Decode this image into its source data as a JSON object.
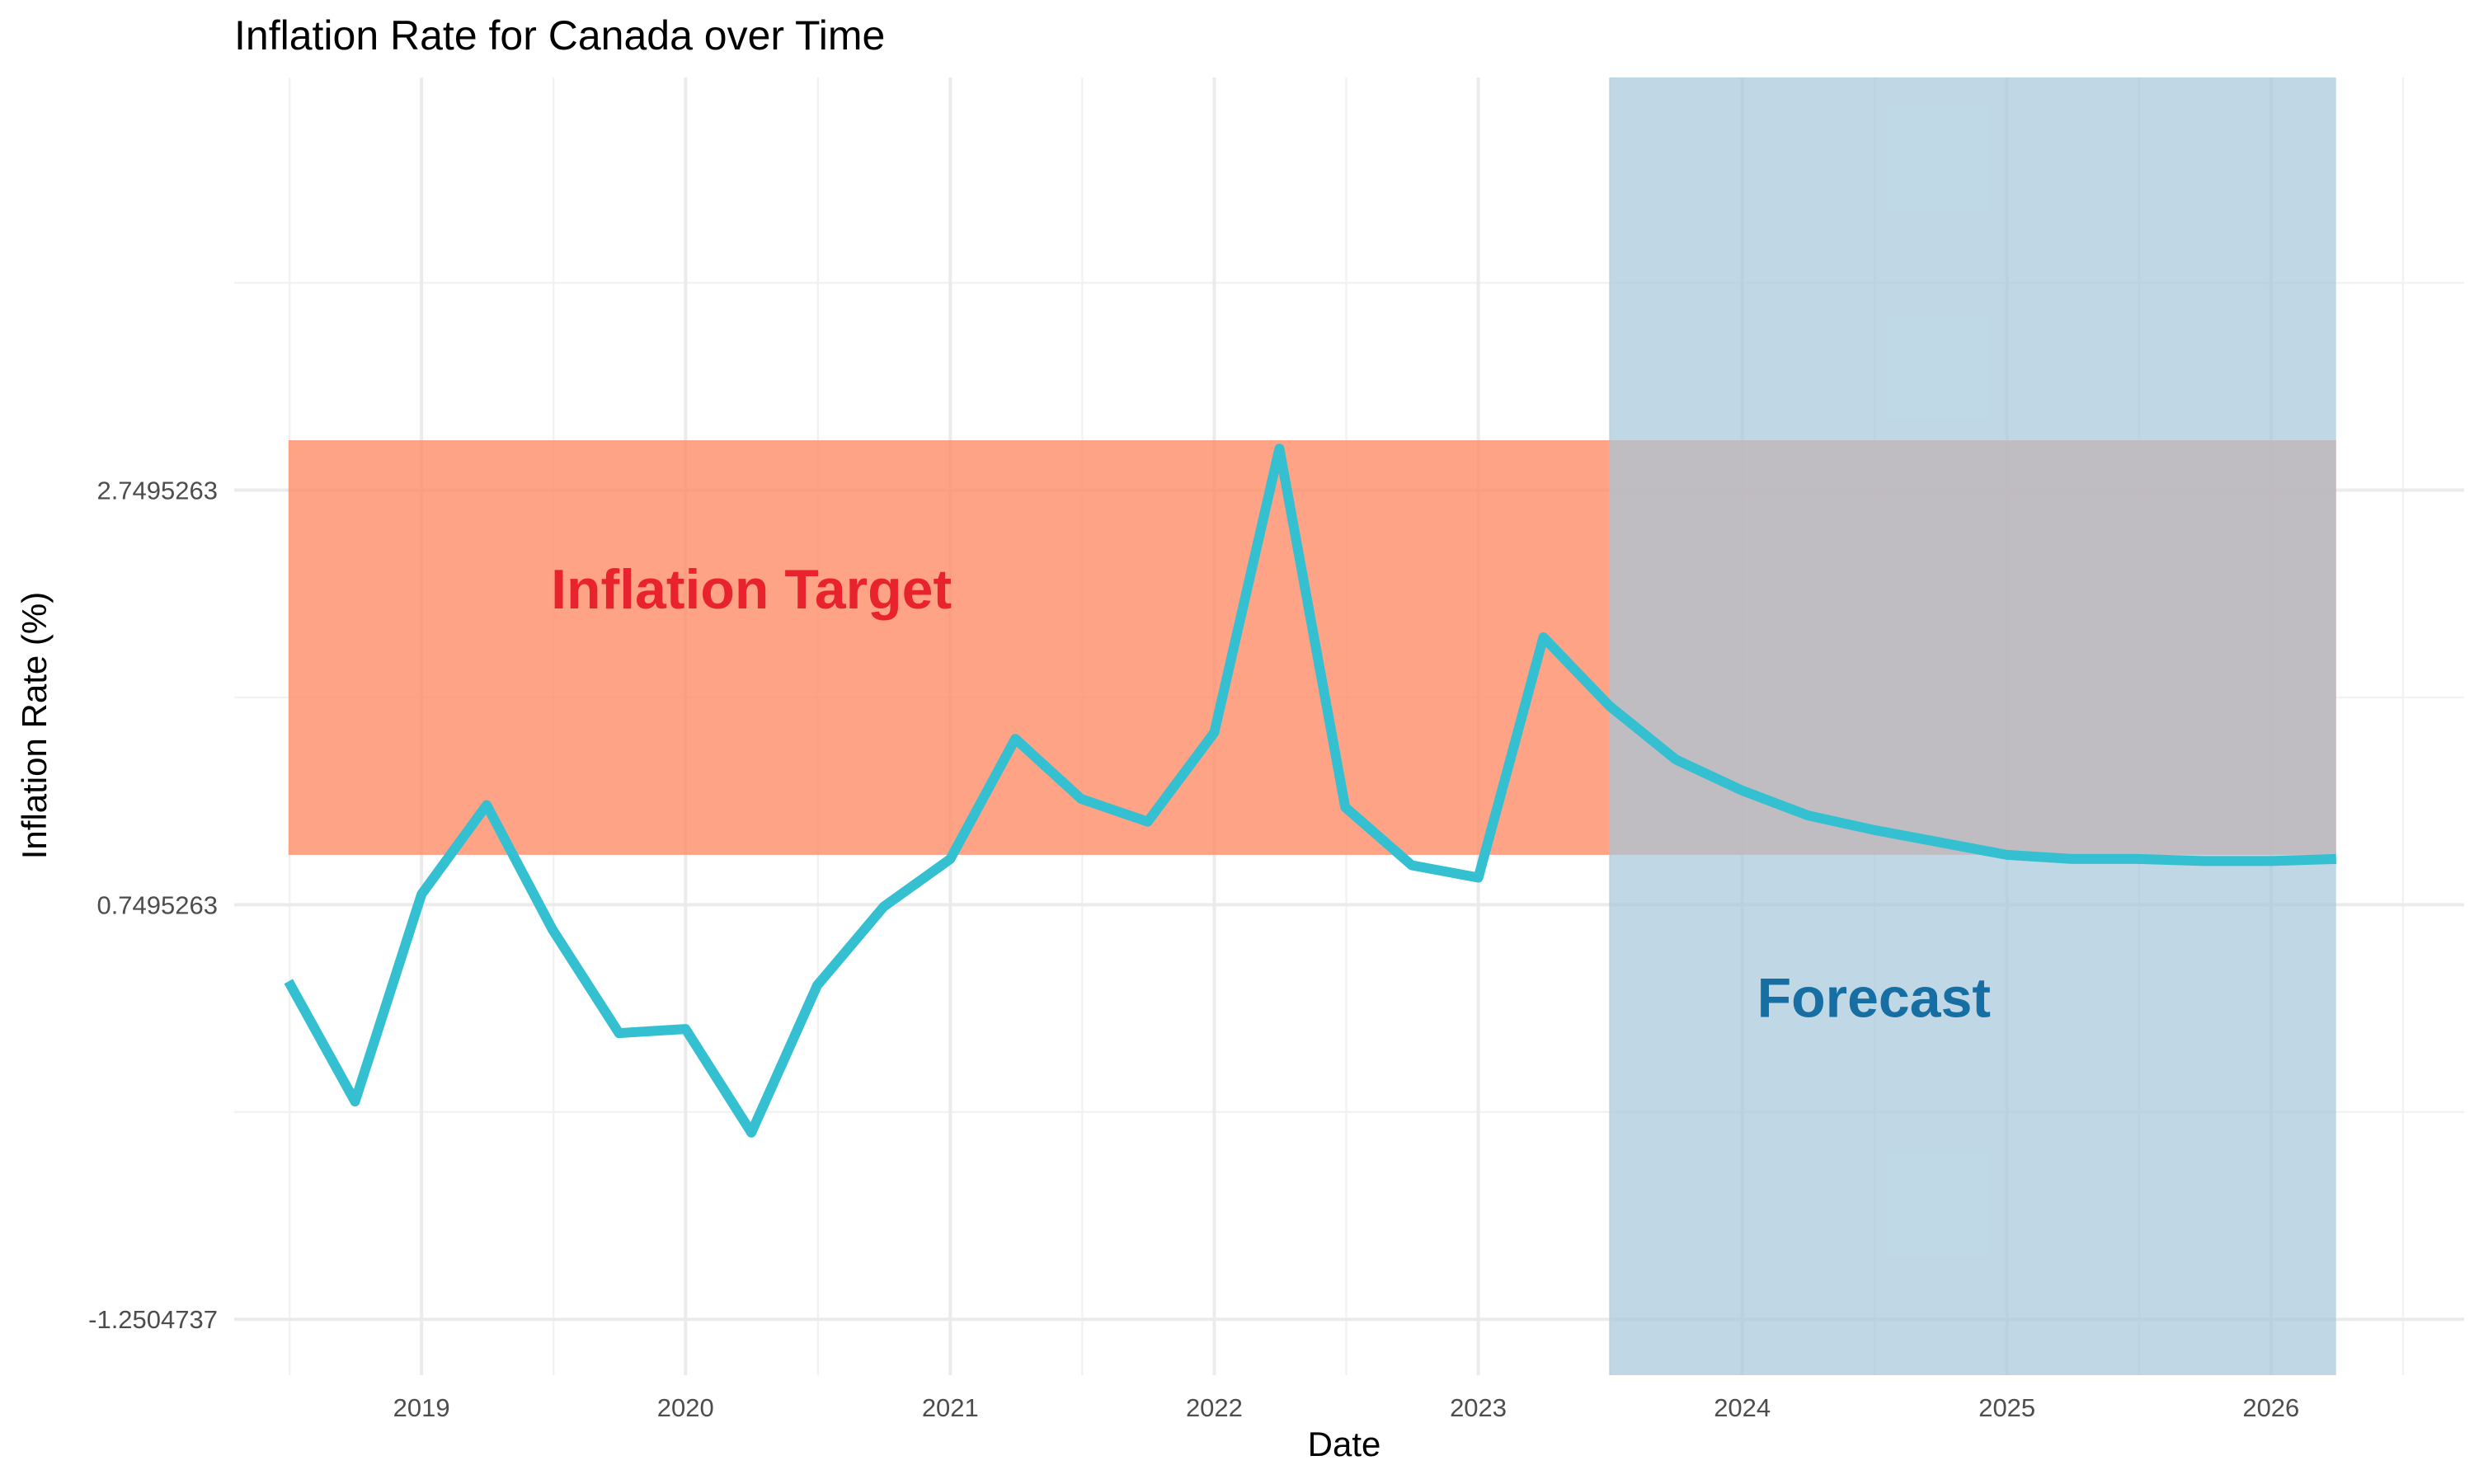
{
  "chart_data": {
    "type": "line",
    "title": "Inflation Rate for Canada over Time",
    "xlabel": "Date",
    "ylabel": "Inflation Rate (%)",
    "xlim": [
      "2018-04-17",
      "2026-09-25"
    ],
    "ylim": [
      -1.52,
      4.74
    ],
    "x_ticks": [
      "2019-01-01",
      "2020-01-01",
      "2021-01-01",
      "2022-01-01",
      "2023-01-01",
      "2024-01-01",
      "2025-01-01",
      "2026-01-01"
    ],
    "x_tick_labels": [
      "2019",
      "2020",
      "2021",
      "2022",
      "2023",
      "2024",
      "2025",
      "2026"
    ],
    "y_ticks": [
      -1.2504737,
      0.7495263,
      2.7495263
    ],
    "y_tick_labels": [
      "-1.2504737",
      "0.7495263",
      "2.7495263"
    ],
    "grid": true,
    "colors": {
      "line": "#35c0d1",
      "target_band": "#ff8c69",
      "forecast_band": "#a5c8dc",
      "target_label": "#e8232e",
      "forecast_label": "#176ea2"
    },
    "series": [
      {
        "x": [
          "2018-07-01",
          "2018-10-01",
          "2019-01-01",
          "2019-04-01",
          "2019-07-01",
          "2019-10-01",
          "2020-01-01",
          "2020-04-01",
          "2020-07-01",
          "2020-10-01",
          "2021-01-01",
          "2021-04-01",
          "2021-07-01",
          "2021-10-01",
          "2022-01-01",
          "2022-04-01",
          "2022-07-01",
          "2022-10-01",
          "2023-01-01",
          "2023-04-01",
          "2023-07-01",
          "2023-10-01",
          "2024-01-01",
          "2024-04-01",
          "2024-07-01",
          "2024-10-01",
          "2025-01-01",
          "2025-04-01",
          "2025-07-01",
          "2025-10-01",
          "2026-01-01",
          "2026-04-01"
        ],
        "values": [
          0.38,
          -0.2,
          0.8,
          1.23,
          0.63,
          0.13,
          0.15,
          -0.35,
          0.36,
          0.74,
          0.97,
          1.55,
          1.26,
          1.15,
          1.58,
          2.95,
          1.22,
          0.94,
          0.88,
          2.04,
          1.71,
          1.45,
          1.3,
          1.18,
          1.11,
          1.05,
          0.99,
          0.97,
          0.97,
          0.96,
          0.96,
          0.97
        ]
      }
    ],
    "bands": [
      {
        "axis": "y",
        "from": 0.99,
        "to": 2.99,
        "x_from": "2018-07-01",
        "x_to": "2026-04-01"
      },
      {
        "axis": "x",
        "from": "2023-07-01",
        "to": "2026-04-01"
      }
    ],
    "annotations": [
      {
        "text": "Inflation Target",
        "x": "2020-04-01",
        "y": 2.25
      },
      {
        "text": "Forecast",
        "x": "2024-07-01",
        "y": 0.28
      }
    ]
  }
}
